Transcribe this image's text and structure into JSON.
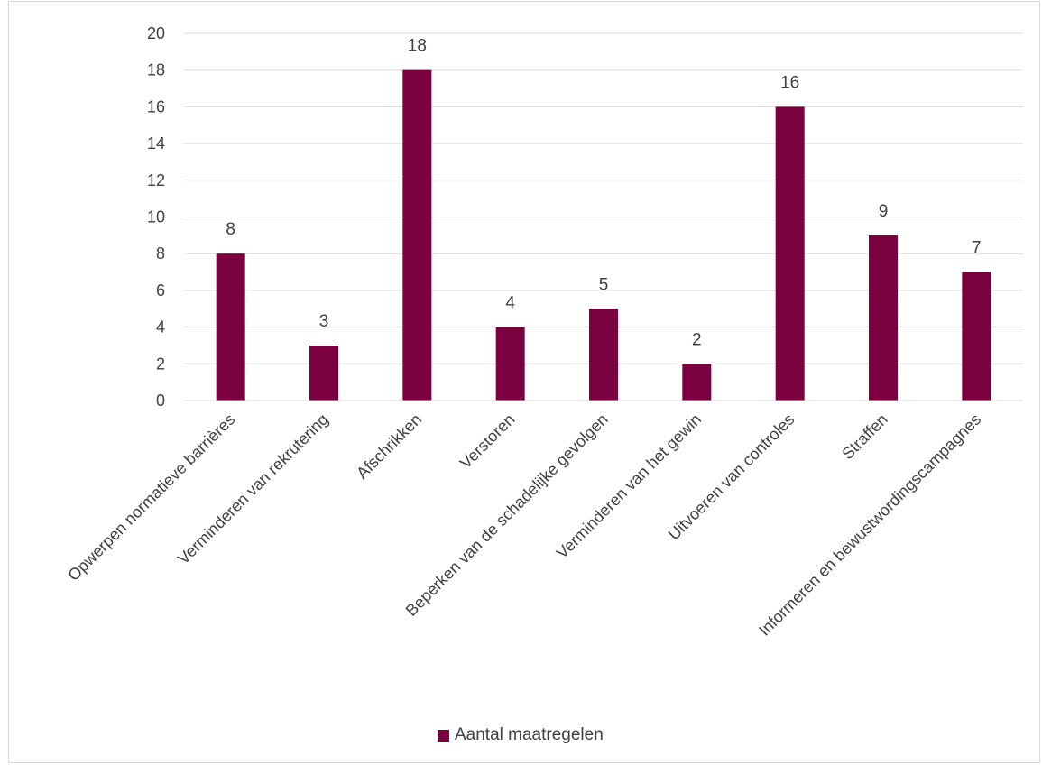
{
  "chart_data": {
    "type": "bar",
    "categories": [
      "Opwerpen normatieve barrières",
      "Verminderen van rekrutering",
      "Afschrikken",
      "Verstoren",
      "Beperken van de schadelijke gevolgen",
      "Verminderen van het gewin",
      "Uitvoeren van controles",
      "Straffen",
      "Informeren en bewustwordingscampagnes"
    ],
    "series": [
      {
        "name": "Aantal maatregelen",
        "values": [
          8,
          3,
          18,
          4,
          5,
          2,
          16,
          9,
          7
        ],
        "color": "#7b0040"
      }
    ],
    "yticks": [
      "0",
      "2",
      "4",
      "6",
      "8",
      "10",
      "12",
      "14",
      "16",
      "18",
      "20"
    ],
    "ylim": [
      0,
      20
    ],
    "grid": true,
    "legend_position": "bottom",
    "data_labels": true
  }
}
